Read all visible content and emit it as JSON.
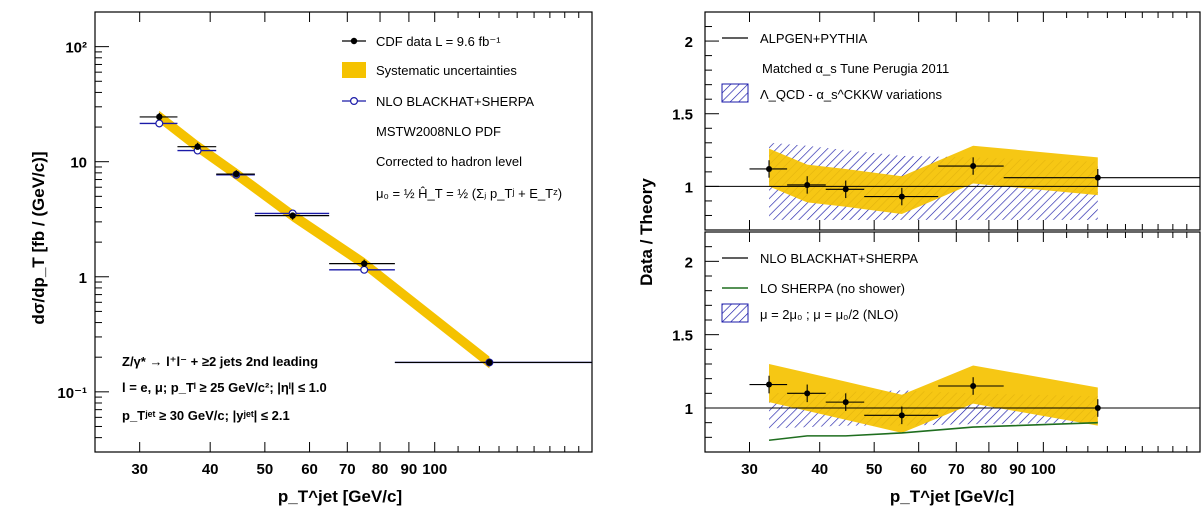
{
  "colors": {
    "band": "#f5c200",
    "nlo": "#1a1aa8",
    "lo": "#1f6e1f",
    "data": "#000000"
  },
  "left_panel": {
    "ylabel": "dσ/dp_T [fb / (GeV/c)]",
    "xlabel": "p_T^jet [GeV/c]",
    "legend": {
      "data": "CDF data  L = 9.6 fb⁻¹",
      "syst": "Systematic uncertainties",
      "nlo": "NLO BLACKHAT+SHERPA",
      "pdf": "MSTW2008NLO PDF",
      "corr": "Corrected to hadron level",
      "scale": "μ₀ = ½ Ĥ_T = ½ (Σⱼ p_Tʲ + E_Tᶻ)"
    },
    "annotation": {
      "line1": "Z/γ* → l⁺l⁻ + ≥2 jets 2nd leading",
      "line2": "l = e, μ;  p_Tˡ ≥ 25 GeV/c²; |ηˡ| ≤ 1.0",
      "line3": "p_Tʲᵉᵗ ≥ 30 GeV/c; |yʲᵉᵗ| ≤ 2.1"
    }
  },
  "right_panel": {
    "ylabel": "Data / Theory",
    "xlabel": "p_T^jet [GeV/c]",
    "top_legend": {
      "l1": "ALPGEN+PYTHIA",
      "l2": "Matched α_s Tune Perugia 2011",
      "l3": "Λ_QCD - α_s^CKKW variations"
    },
    "bottom_legend": {
      "l1": "NLO BLACKHAT+SHERPA",
      "l2": "LO SHERPA (no shower)",
      "l3": "μ = 2μ₀ ; μ = μ₀/2 (NLO)"
    }
  },
  "chart_data": [
    {
      "type": "scatter",
      "title": "",
      "xlabel": "p_T^jet [GeV/c]",
      "ylabel": "dσ/dp_T [fb / (GeV/c)]",
      "xscale": "log",
      "yscale": "log",
      "xlim": [
        25,
        190
      ],
      "ylim": [
        0.03,
        200
      ],
      "x_ticks": [
        "30",
        "40",
        "50",
        "60",
        "70",
        "80",
        "90",
        "100"
      ],
      "y_ticks": [
        "10⁻¹",
        "1",
        "10",
        "10²"
      ],
      "bins": [
        [
          30,
          35
        ],
        [
          35,
          41
        ],
        [
          41,
          48
        ],
        [
          48,
          65
        ],
        [
          65,
          85
        ],
        [
          85,
          190
        ]
      ],
      "x": [
        32.5,
        38,
        44.5,
        56,
        75,
        125
      ],
      "series": [
        {
          "name": "CDF data  L = 9.6 fb⁻¹",
          "values": [
            24.5,
            13.5,
            7.8,
            3.4,
            1.3,
            0.18
          ]
        },
        {
          "name": "NLO BLACKHAT+SHERPA",
          "values": [
            21.5,
            12.5,
            7.7,
            3.55,
            1.15,
            0.18
          ]
        }
      ],
      "legend_position": "top-right",
      "grid": false
    },
    {
      "type": "scatter",
      "title": "",
      "ylabel": "Data / Theory",
      "xscale": "log",
      "xlim": [
        25,
        190
      ],
      "ylim": [
        0.7,
        2.2
      ],
      "y_ticks": [
        "1",
        "1.5",
        "2"
      ],
      "reference": "ALPGEN+PYTHIA",
      "x": [
        32.5,
        38,
        44.5,
        56,
        75,
        125
      ],
      "series": [
        {
          "name": "Data / ALPGEN+PYTHIA",
          "values": [
            1.12,
            1.01,
            0.98,
            0.93,
            1.14,
            1.06
          ]
        }
      ],
      "band_upper": [
        1.3,
        1.28,
        1.25,
        1.21,
        1.2,
        1.17
      ],
      "band_lower": [
        0.77,
        0.77,
        0.77,
        0.77,
        0.77,
        0.77
      ]
    },
    {
      "type": "scatter",
      "title": "",
      "xlabel": "p_T^jet [GeV/c]",
      "ylabel": "Data / Theory",
      "xscale": "log",
      "xlim": [
        25,
        190
      ],
      "ylim": [
        0.7,
        2.2
      ],
      "y_ticks": [
        "1",
        "1.5",
        "2"
      ],
      "reference": "NLO BLACKHAT+SHERPA",
      "x": [
        32.5,
        38,
        44.5,
        56,
        75,
        125
      ],
      "series": [
        {
          "name": "Data / NLO BLACKHAT+SHERPA",
          "values": [
            1.16,
            1.1,
            1.04,
            0.95,
            1.15,
            1.0
          ]
        },
        {
          "name": "LO SHERPA (no shower)",
          "values": [
            0.78,
            0.81,
            0.81,
            0.83,
            0.87,
            0.9
          ]
        }
      ],
      "band_upper": [
        1.1,
        1.11,
        1.11,
        1.12,
        1.1,
        1.08
      ],
      "band_lower": [
        0.86,
        0.87,
        0.88,
        0.88,
        0.89,
        0.9
      ]
    }
  ]
}
